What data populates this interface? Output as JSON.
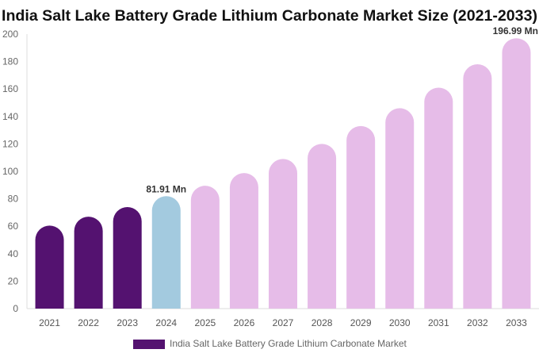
{
  "chart_data": {
    "type": "bar",
    "title": "India Salt Lake Battery Grade Lithium Carbonate Market Size (2021-2033)",
    "categories": [
      "2021",
      "2022",
      "2023",
      "2024",
      "2025",
      "2026",
      "2027",
      "2028",
      "2029",
      "2030",
      "2031",
      "2032",
      "2033"
    ],
    "series": [
      {
        "name": "India Salt Lake Battery Grade Lithium Carbonate Market",
        "values": [
          60.5,
          67,
          74,
          81.91,
          89.5,
          98.8,
          109,
          120,
          133,
          146,
          161,
          178,
          196.99
        ]
      }
    ],
    "data_labels": [
      {
        "category": "2024",
        "text": "81.91 Mn"
      },
      {
        "category": "2033",
        "text": "196.99 Mn"
      }
    ],
    "ylim": [
      0,
      200
    ],
    "yticks": [
      0,
      20,
      40,
      60,
      80,
      100,
      120,
      140,
      160,
      180,
      200
    ],
    "grid": false,
    "legend": "bottom",
    "colors": {
      "historical": "#541270",
      "base": "#a3cadf",
      "forecast": "#e6bce8"
    }
  }
}
